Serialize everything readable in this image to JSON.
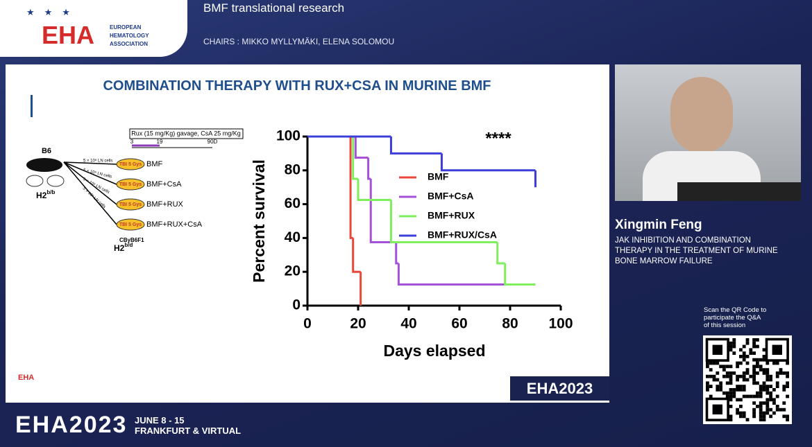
{
  "header": {
    "logo_text": "EHA",
    "org_lines": [
      "EUROPEAN",
      "HEMATOLOGY",
      "ASSOCIATION"
    ],
    "session": "BMF translational research",
    "chairs": "CHAIRS : MIKKO MYLLYMÄKI, ELENA SOLOMOU"
  },
  "slide": {
    "title": "COMBINATION THERAPY WITH RUX+CSA IN MURINE BMF",
    "diagram": {
      "dosing": "Rux (15 mg/Kg) gavage, CsA 25 mg/Kg",
      "timeline": [
        "3",
        "19",
        "90D"
      ],
      "donor": "B6",
      "donor_h2": {
        "base": "H2",
        "sup": "b/b"
      },
      "cells": [
        "5 × 10⁶ LN cells",
        "5 × 10⁶ LN cells",
        "5 × 10⁶ LN cells",
        "5 × 10⁶ LN cells"
      ],
      "tbi": [
        "TBI 5 Gys",
        "TBI 5 Gys",
        "TBI 5 Gys",
        "TBI 5 Gys"
      ],
      "groups": [
        "BMF",
        "BMF+CsA",
        "BMF+RUX",
        "BMF+RUX+CsA"
      ],
      "recipient": "CByB6F1",
      "recipient_h2": {
        "base": "H2",
        "sup": "b/d"
      }
    },
    "footer_logo": "EHA",
    "footer_brand": "EHA2023"
  },
  "chart_data": {
    "type": "step",
    "x_label": "Days elapsed",
    "y_label": "Percent survival",
    "annotation": "****",
    "xlim": [
      0,
      100
    ],
    "ylim": [
      0,
      100
    ],
    "xticks": [
      0,
      20,
      40,
      60,
      80,
      100
    ],
    "yticks": [
      0,
      20,
      40,
      60,
      80,
      100
    ],
    "series": [
      {
        "name": "BMF",
        "color": "#e8473a",
        "x": [
          0,
          17,
          18,
          21
        ],
        "values": [
          100,
          40,
          20,
          0
        ]
      },
      {
        "name": "BMF+CsA",
        "color": "#a550d8",
        "x": [
          0,
          19,
          24,
          25,
          35,
          36,
          90
        ],
        "values": [
          100,
          87.5,
          75,
          37.5,
          25,
          12.5,
          12.5
        ]
      },
      {
        "name": "BMF+RUX",
        "color": "#7eee5c",
        "x": [
          0,
          18,
          20,
          33,
          75,
          78,
          90
        ],
        "values": [
          100,
          75,
          62.5,
          37.5,
          25,
          12.5,
          12.5
        ]
      },
      {
        "name": "BMF+RUX/CsA",
        "color": "#3b3ed8",
        "x": [
          0,
          33,
          53,
          90
        ],
        "values": [
          100,
          90,
          80,
          70
        ]
      }
    ]
  },
  "speaker": {
    "name": "Xingmin Feng",
    "talk_lines": [
      "JAK INHIBITION AND COMBINATION",
      "THERAPY IN THE TREATMENT OF MURINE",
      "BONE MARROW FAILURE"
    ]
  },
  "qr": {
    "lines": [
      "Scan the QR Code to",
      "participate the Q&A",
      "of this session"
    ]
  },
  "footer": {
    "brand": "EHA2023",
    "dates": "JUNE 8 - 15",
    "place": "FRANKFURT & VIRTUAL"
  }
}
